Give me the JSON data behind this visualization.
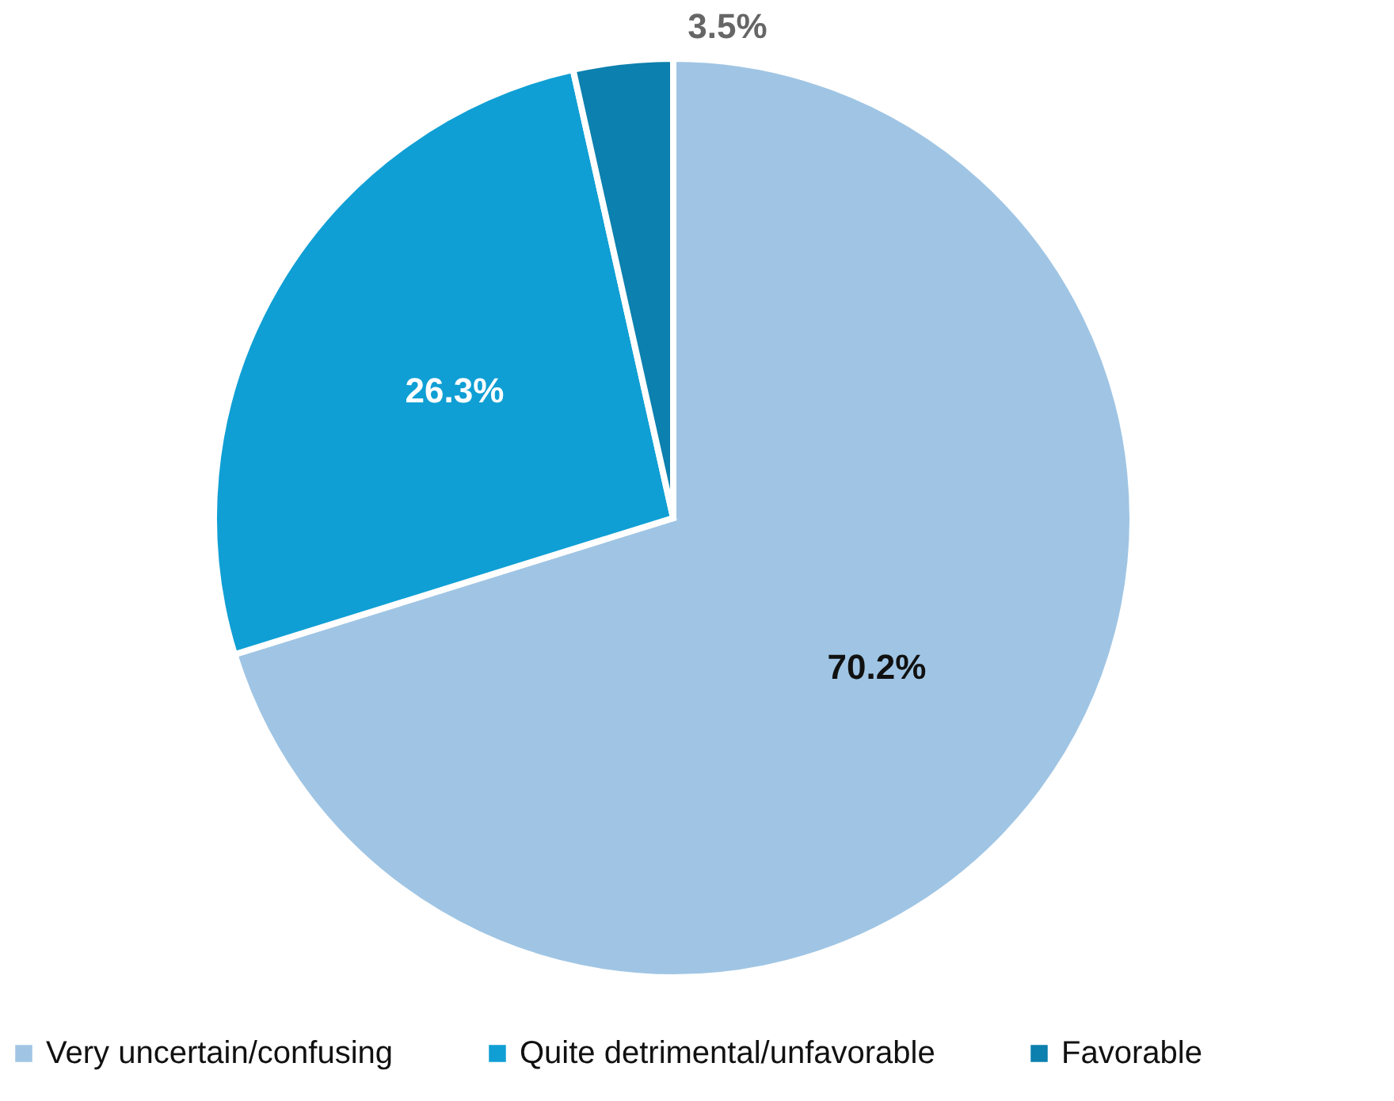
{
  "chart_data": {
    "type": "pie",
    "categories": [
      "Very uncertain/confusing",
      "Quite detrimental/unfavorable",
      "Favorable"
    ],
    "values": [
      70.2,
      26.3,
      3.5
    ],
    "colors": [
      "#a0c5e4",
      "#0f9fd4",
      "#0c80ae"
    ],
    "value_labels": [
      "70.2%",
      "26.3%",
      "3.5%"
    ],
    "legend": "bottom"
  }
}
